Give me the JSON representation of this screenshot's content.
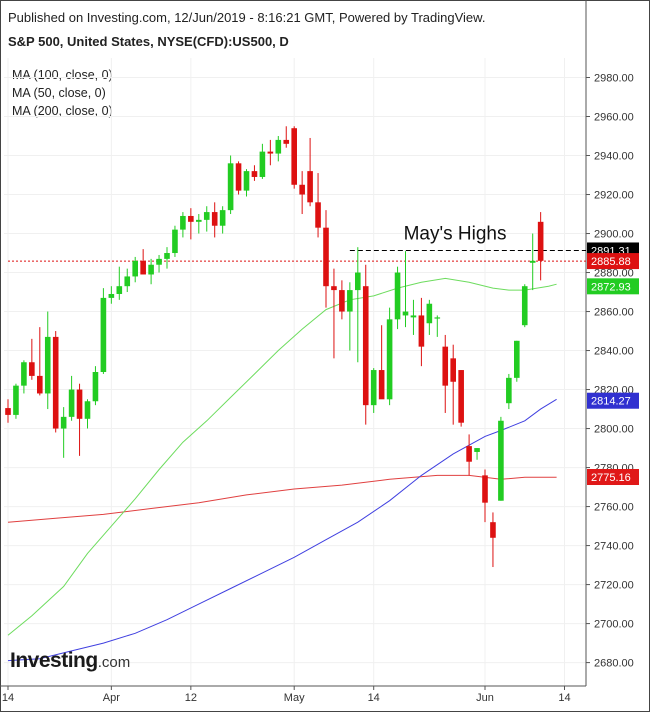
{
  "header": {
    "published": "Published on Investing.com, 12/Jun/2019 - 8:16:21 GMT, Powered by TradingView.",
    "symbol": "S&P 500, United States, NYSE(CFD):US500, D"
  },
  "legend": {
    "items": [
      "MA (100, close, 0)",
      "MA (50, close, 0)",
      "MA (200, close, 0)"
    ]
  },
  "logo": {
    "main": "Investing",
    "suffix": ".com"
  },
  "colors": {
    "up": "#22cc22",
    "down": "#dd1111",
    "ma50": "#6ddc5e",
    "ma100": "#4040e0",
    "ma200": "#e04040",
    "grid": "#f0f0f0",
    "axis": "#555555"
  },
  "chart_data": {
    "type": "candlestick",
    "ylim": [
      2668,
      2990
    ],
    "y_ticks": [
      2680,
      2700,
      2720,
      2740,
      2760,
      2780,
      2800,
      2820,
      2840,
      2860,
      2880,
      2900,
      2920,
      2940,
      2960,
      2980
    ],
    "x_ticks": [
      {
        "label": "14",
        "index": 0
      },
      {
        "label": "Apr",
        "index": 13
      },
      {
        "label": "12",
        "index": 23
      },
      {
        "label": "May",
        "index": 36
      },
      {
        "label": "14",
        "index": 46
      },
      {
        "label": "Jun",
        "index": 60
      },
      {
        "label": "14",
        "index": 70
      }
    ],
    "candles": [
      [
        2810.5,
        2815,
        2803,
        2807
      ],
      [
        2807,
        2823,
        2805,
        2822
      ],
      [
        2822,
        2835,
        2818,
        2834
      ],
      [
        2834,
        2846,
        2825,
        2827
      ],
      [
        2827,
        2852,
        2817,
        2818
      ],
      [
        2818,
        2860,
        2810,
        2847
      ],
      [
        2847,
        2850,
        2798,
        2800
      ],
      [
        2800,
        2811,
        2785,
        2806
      ],
      [
        2806,
        2827,
        2804,
        2820
      ],
      [
        2820,
        2823,
        2786,
        2805
      ],
      [
        2805,
        2815,
        2800,
        2814
      ],
      [
        2814,
        2832,
        2812,
        2829
      ],
      [
        2829,
        2872,
        2828,
        2867
      ],
      [
        2867,
        2873,
        2864,
        2869
      ],
      [
        2869,
        2883,
        2866,
        2873
      ],
      [
        2873,
        2882,
        2870,
        2878
      ],
      [
        2878,
        2888,
        2875,
        2886
      ],
      [
        2886,
        2892,
        2880,
        2879
      ],
      [
        2879,
        2887,
        2874,
        2884
      ],
      [
        2884,
        2889,
        2880,
        2887
      ],
      [
        2887,
        2893,
        2882,
        2890
      ],
      [
        2890,
        2904,
        2888,
        2902
      ],
      [
        2902,
        2911,
        2898,
        2909
      ],
      [
        2909,
        2913,
        2897,
        2906
      ],
      [
        2906,
        2910,
        2900,
        2907
      ],
      [
        2907,
        2914,
        2901,
        2911
      ],
      [
        2911,
        2916,
        2898,
        2904
      ],
      [
        2904,
        2914,
        2900,
        2912
      ],
      [
        2912,
        2940,
        2910,
        2936
      ],
      [
        2936,
        2937,
        2920,
        2922
      ],
      [
        2922,
        2933,
        2919,
        2932
      ],
      [
        2932,
        2935,
        2927,
        2929
      ],
      [
        2929,
        2946,
        2928,
        2942
      ],
      [
        2942,
        2948,
        2935,
        2941
      ],
      [
        2941,
        2950,
        2937,
        2948
      ],
      [
        2948,
        2955,
        2944,
        2946
      ],
      [
        2954,
        2955,
        2923,
        2925
      ],
      [
        2925,
        2932,
        2910,
        2920
      ],
      [
        2932,
        2949,
        2914,
        2916
      ],
      [
        2916,
        2931,
        2898,
        2903
      ],
      [
        2903,
        2912,
        2862,
        2873
      ],
      [
        2873,
        2882,
        2836,
        2871
      ],
      [
        2871,
        2876,
        2856,
        2860
      ],
      [
        2860,
        2875,
        2840,
        2871
      ],
      [
        2871,
        2893,
        2834,
        2880
      ],
      [
        2873,
        2884,
        2802,
        2812
      ],
      [
        2812,
        2831,
        2808,
        2830
      ],
      [
        2830,
        2853,
        2818,
        2815
      ],
      [
        2815,
        2862,
        2812,
        2856
      ],
      [
        2856,
        2883,
        2851,
        2880
      ],
      [
        2858,
        2891,
        2852,
        2860
      ],
      [
        2857,
        2866,
        2848,
        2858
      ],
      [
        2858,
        2867,
        2832,
        2842
      ],
      [
        2854,
        2866,
        2848,
        2864
      ],
      [
        2857,
        2858,
        2847,
        2857
      ],
      [
        2842,
        2848,
        2808,
        2822
      ],
      [
        2836,
        2843,
        2802,
        2824
      ],
      [
        2830,
        2830,
        2801,
        2803
      ],
      [
        2791,
        2797,
        2776,
        2783
      ],
      [
        2788,
        2790,
        2784,
        2790
      ],
      [
        2776,
        2779,
        2752,
        2762
      ],
      [
        2752,
        2757,
        2729,
        2744
      ],
      [
        2763,
        2806,
        2763,
        2804
      ],
      [
        2813,
        2828,
        2810,
        2826
      ],
      [
        2826,
        2845,
        2824,
        2845
      ],
      [
        2853,
        2874,
        2852,
        2873
      ],
      [
        2885,
        2900,
        2871,
        2886
      ],
      [
        2906,
        2911,
        2876,
        2886
      ]
    ],
    "ma50": [
      [
        0,
        2694
      ],
      [
        3,
        2704
      ],
      [
        7,
        2719
      ],
      [
        10,
        2736
      ],
      [
        13,
        2750
      ],
      [
        16,
        2764
      ],
      [
        19,
        2779
      ],
      [
        22,
        2793
      ],
      [
        25,
        2804
      ],
      [
        28,
        2816
      ],
      [
        31,
        2828
      ],
      [
        34,
        2840
      ],
      [
        37,
        2851
      ],
      [
        40,
        2861
      ],
      [
        43,
        2866
      ],
      [
        46,
        2868
      ],
      [
        49,
        2872
      ],
      [
        52,
        2875
      ],
      [
        55,
        2877
      ],
      [
        58,
        2875
      ],
      [
        61,
        2872
      ],
      [
        63,
        2871
      ],
      [
        65,
        2871
      ],
      [
        68,
        2873
      ],
      [
        69,
        2874
      ]
    ],
    "ma100": [
      [
        0,
        2681
      ],
      [
        4,
        2682
      ],
      [
        8,
        2686
      ],
      [
        12,
        2690
      ],
      [
        16,
        2695
      ],
      [
        20,
        2702
      ],
      [
        24,
        2710
      ],
      [
        28,
        2718
      ],
      [
        32,
        2726
      ],
      [
        36,
        2734
      ],
      [
        40,
        2743
      ],
      [
        44,
        2752
      ],
      [
        48,
        2763
      ],
      [
        52,
        2776
      ],
      [
        56,
        2787
      ],
      [
        60,
        2796
      ],
      [
        62,
        2799
      ],
      [
        65,
        2804
      ],
      [
        67,
        2810
      ],
      [
        69,
        2815
      ]
    ],
    "ma200": [
      [
        0,
        2752
      ],
      [
        6,
        2754
      ],
      [
        12,
        2756
      ],
      [
        18,
        2759
      ],
      [
        24,
        2762
      ],
      [
        30,
        2766
      ],
      [
        36,
        2769
      ],
      [
        42,
        2771
      ],
      [
        48,
        2774
      ],
      [
        54,
        2776
      ],
      [
        58,
        2776
      ],
      [
        62,
        2774
      ],
      [
        65,
        2775
      ],
      [
        69,
        2775
      ]
    ],
    "reference_lines": [
      {
        "price": 2891.31,
        "style": "dashed",
        "color": "#000000",
        "from_index": 43,
        "label": "2891.31",
        "label_bg": "#000000"
      },
      {
        "price": 2885.88,
        "style": "dotted",
        "color": "#dd1111",
        "from_index": 0,
        "label": "2885.88",
        "label_bg": "#dd1111"
      }
    ],
    "price_labels": [
      {
        "price": 2872.93,
        "label": "2872.93",
        "bg": "#22cc22"
      },
      {
        "price": 2814.27,
        "label": "2814.27",
        "bg": "#3030d0"
      },
      {
        "price": 2775.16,
        "label": "2775.16",
        "bg": "#e01818"
      }
    ],
    "annotation": {
      "text": "May's Highs",
      "price": 2900,
      "index": 48
    }
  }
}
